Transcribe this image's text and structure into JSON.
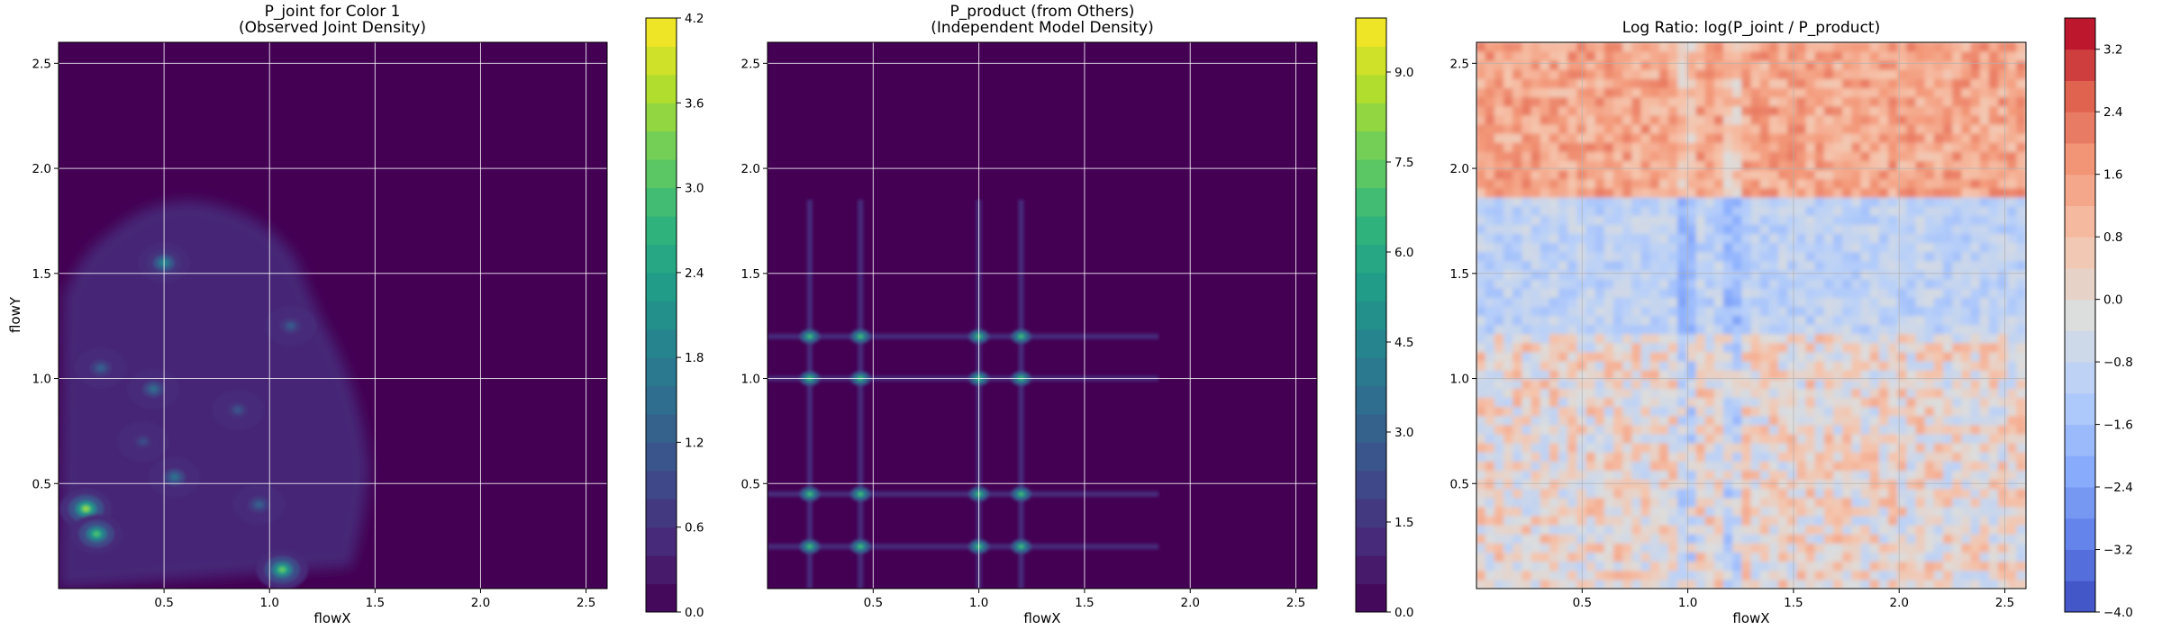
{
  "chart_data": [
    {
      "type": "heatmap",
      "style": "filled-contour",
      "title_line1": "P_joint for Color 1",
      "title_line2": "(Observed Joint Density)",
      "xlabel": "flowX",
      "ylabel": "flowY",
      "xlim": [
        0.0,
        2.6
      ],
      "ylim": [
        0.0,
        2.6
      ],
      "xticks": [
        "0.5",
        "1.0",
        "1.5",
        "2.0",
        "2.5"
      ],
      "yticks": [
        "0.5",
        "1.0",
        "1.5",
        "2.0",
        "2.5"
      ],
      "grid": true,
      "colormap": "viridis",
      "colorbar": {
        "min": 0.0,
        "max": 4.2,
        "ticks": [
          "0.0",
          "0.6",
          "1.2",
          "1.8",
          "2.4",
          "3.0",
          "3.6",
          "4.2"
        ]
      },
      "background_value": 0.0,
      "hotspots": [
        {
          "x": 0.13,
          "y": 0.38,
          "value": 3.6
        },
        {
          "x": 0.18,
          "y": 0.26,
          "value": 3.0
        },
        {
          "x": 1.06,
          "y": 0.09,
          "value": 3.2
        },
        {
          "x": 0.5,
          "y": 1.55,
          "value": 2.0
        },
        {
          "x": 0.55,
          "y": 0.53,
          "value": 1.6
        },
        {
          "x": 0.2,
          "y": 1.05,
          "value": 1.3
        },
        {
          "x": 0.45,
          "y": 0.95,
          "value": 1.5
        },
        {
          "x": 1.1,
          "y": 1.25,
          "value": 1.2
        },
        {
          "x": 0.95,
          "y": 0.4,
          "value": 1.3
        },
        {
          "x": 0.85,
          "y": 0.85,
          "value": 1.1
        },
        {
          "x": 0.4,
          "y": 0.7,
          "value": 1.0
        }
      ]
    },
    {
      "type": "heatmap",
      "style": "filled-contour",
      "title_line1": "P_product (from Others)",
      "title_line2": "(Independent Model Density)",
      "xlabel": "flowX",
      "ylabel": "",
      "xlim": [
        0.0,
        2.6
      ],
      "ylim": [
        0.0,
        2.6
      ],
      "xticks": [
        "0.5",
        "1.0",
        "1.5",
        "2.0",
        "2.5"
      ],
      "yticks": [
        "0.5",
        "1.0",
        "1.5",
        "2.0",
        "2.5"
      ],
      "grid": true,
      "colormap": "viridis",
      "colorbar": {
        "min": 0.0,
        "max": 9.9,
        "ticks": [
          "0.0",
          "1.5",
          "3.0",
          "4.5",
          "6.0",
          "7.5",
          "9.0"
        ]
      },
      "background_value": 0.0,
      "grid_lines_x": [
        0.2,
        0.44,
        1.0,
        1.2
      ],
      "grid_lines_y": [
        0.2,
        0.45,
        1.0,
        1.2
      ],
      "peak_value": 6.5
    },
    {
      "type": "heatmap",
      "style": "filled-contour",
      "title_line1": "Log Ratio: log(P_joint / P_product)",
      "xlabel": "flowX",
      "ylabel": "",
      "xlim": [
        0.0,
        2.6
      ],
      "ylim": [
        0.0,
        2.6
      ],
      "xticks": [
        "0.5",
        "1.0",
        "1.5",
        "2.0",
        "2.5"
      ],
      "yticks": [
        "0.5",
        "1.0",
        "1.5",
        "2.0",
        "2.5"
      ],
      "grid": true,
      "colormap": "coolwarm",
      "colorbar": {
        "min": -4.0,
        "max": 3.6,
        "ticks": [
          "−4.0",
          "−3.2",
          "−2.4",
          "−1.6",
          "−0.8",
          "0.0",
          "0.8",
          "1.6",
          "2.4",
          "3.2"
        ]
      },
      "warm_band_y": [
        1.85,
        2.6
      ],
      "cool_band_y": [
        1.2,
        1.85
      ],
      "mixed_band_y": [
        0.0,
        1.2
      ]
    }
  ],
  "colors": {
    "viridis": [
      "#440154",
      "#482878",
      "#3e4a89",
      "#31688e",
      "#26828e",
      "#1f9e89",
      "#35b779",
      "#6ece58",
      "#b5de2b",
      "#fde725"
    ],
    "coolwarm": [
      "#3b4cc0",
      "#6282ea",
      "#8db0fe",
      "#b8d0f9",
      "#dcdddd",
      "#f5c4ac",
      "#f49a7b",
      "#de604d",
      "#b40426"
    ],
    "grid": "#ffffff",
    "grid_on_light": "#b0b0b0"
  }
}
